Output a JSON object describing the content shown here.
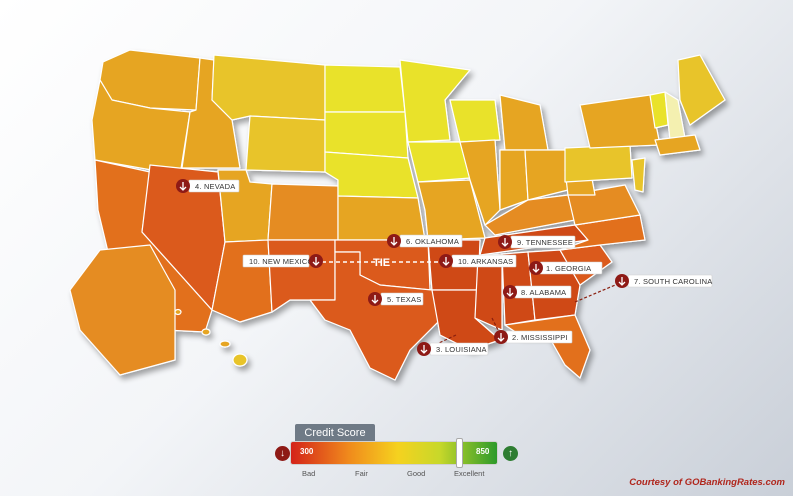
{
  "map": {
    "tie_label": "TIE",
    "colors": {
      "yellow": "#e9e22a",
      "light_yellow_orange": "#e8c42a",
      "light_orange": "#e6a523",
      "orange": "#e58c24",
      "dark_orange": "#e2701f",
      "red_orange": "#db5a1a",
      "ranked_red": "#cf4817"
    },
    "rankings": [
      {
        "rank": 1,
        "label": "1. GEORGIA"
      },
      {
        "rank": 2,
        "label": "2. MISSISSIPPI"
      },
      {
        "rank": 3,
        "label": "3. LOUISIANA"
      },
      {
        "rank": 4,
        "label": "4. NEVADA"
      },
      {
        "rank": 5,
        "label": "5. TEXAS"
      },
      {
        "rank": 6,
        "label": "6. OKLAHOMA"
      },
      {
        "rank": 7,
        "label": "7. SOUTH CAROLINA"
      },
      {
        "rank": 8,
        "label": "8. ALABAMA"
      },
      {
        "rank": 9,
        "label": "9. TENNESSEE"
      },
      {
        "rank": 10,
        "label": "10. NEW MEXICO"
      },
      {
        "rank": 10,
        "label": "10. ARKANSAS"
      }
    ],
    "arrow_icon": "down-arrow-icon"
  },
  "legend": {
    "title": "Credit Score",
    "low_value": "300",
    "high_value": "850",
    "ticks": [
      "Bad",
      "Fair",
      "Good",
      "Excellent"
    ],
    "down_icon": "down-arrow-icon",
    "up_icon": "up-arrow-icon"
  },
  "credit": "Courtesy of GOBankingRates.com"
}
